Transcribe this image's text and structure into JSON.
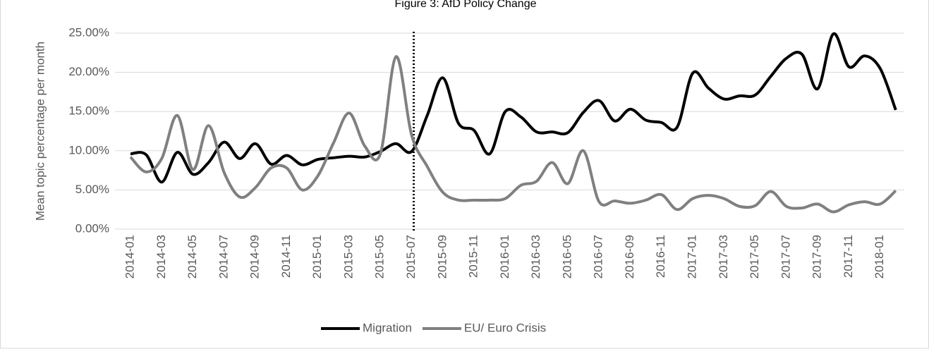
{
  "chart_data": {
    "type": "line",
    "title": "Figure 3: AfD Policy Change",
    "y_label": "Mean topic percentage per month",
    "categories": [
      "2014-01",
      null,
      "2014-03",
      null,
      "2014-05",
      null,
      "2014-07",
      null,
      "2014-09",
      null,
      "2014-11",
      null,
      "2015-01",
      null,
      "2015-03",
      null,
      "2015-05",
      null,
      "2015-07",
      null,
      "2015-09",
      null,
      "2015-11",
      null,
      "2016-01",
      null,
      "2016-03",
      null,
      "2016-05",
      null,
      "2016-07",
      null,
      "2016-09",
      null,
      "2016-11",
      null,
      "2017-01",
      null,
      "2017-03",
      null,
      "2017-05",
      null,
      "2017-07",
      null,
      "2017-09",
      null,
      "2017-11",
      null,
      "2018-01",
      null
    ],
    "series": [
      {
        "name": "Migration",
        "color": "#000000",
        "values": [
          9.6,
          9.5,
          6.0,
          9.8,
          7.0,
          8.5,
          11.1,
          9.0,
          10.9,
          8.3,
          9.4,
          8.2,
          8.9,
          9.1,
          9.3,
          9.2,
          9.9,
          10.9,
          9.9,
          14.5,
          19.3,
          13.5,
          12.6,
          9.6,
          15.0,
          14.3,
          12.4,
          12.4,
          12.3,
          14.9,
          16.4,
          13.8,
          15.3,
          13.9,
          13.6,
          13.0,
          19.9,
          18.0,
          16.6,
          17.0,
          17.1,
          19.5,
          21.8,
          22.3,
          17.9,
          24.9,
          20.7,
          22.1,
          20.5,
          15.2
        ]
      },
      {
        "name": "EU/ Euro Crisis",
        "color": "#808080",
        "values": [
          9.2,
          7.3,
          9.0,
          14.5,
          7.6,
          13.2,
          7.2,
          4.1,
          5.3,
          7.8,
          7.8,
          5.0,
          6.8,
          11.0,
          14.8,
          10.6,
          9.6,
          22.0,
          12.0,
          8.0,
          4.7,
          3.7,
          3.7,
          3.7,
          3.9,
          5.6,
          6.1,
          8.5,
          5.8,
          10.0,
          3.5,
          3.6,
          3.3,
          3.7,
          4.4,
          2.5,
          3.9,
          4.3,
          3.9,
          2.9,
          3.0,
          4.8,
          2.9,
          2.7,
          3.2,
          2.2,
          3.1,
          3.5,
          3.2,
          4.9
        ]
      }
    ],
    "ylim": [
      0,
      25
    ],
    "yticks": [
      {
        "value": 0,
        "label": "0.00%"
      },
      {
        "value": 5,
        "label": "5.00%"
      },
      {
        "value": 10,
        "label": "10.00%"
      },
      {
        "value": 15,
        "label": "15.00%"
      },
      {
        "value": 20,
        "label": "20.00%"
      },
      {
        "value": 25,
        "label": "25.00%"
      }
    ],
    "grid": true,
    "legend": "bottom",
    "vline_at": "2015-07"
  }
}
